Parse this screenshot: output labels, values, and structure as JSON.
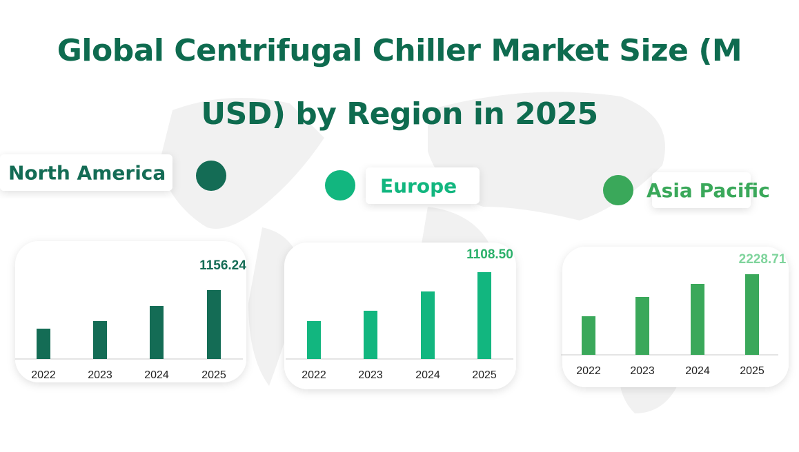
{
  "title": "Global Centrifugal Chiller Market Size (M USD) by Region in 2025",
  "chart_data": [
    {
      "type": "bar",
      "title": "North America",
      "categories": [
        "2022",
        "2023",
        "2024",
        "2025"
      ],
      "values": [
        509,
        636,
        890,
        1156.24
      ],
      "value_labels": [
        null,
        null,
        null,
        "1156.24"
      ],
      "color": "#146c55",
      "label_color": "#146c55"
    },
    {
      "type": "bar",
      "title": "Europe",
      "categories": [
        "2022",
        "2023",
        "2024",
        "2025"
      ],
      "values": [
        484,
        616,
        862,
        1108.5
      ],
      "value_labels": [
        null,
        null,
        null,
        "1108.50"
      ],
      "color": "#12b67f",
      "label_color": "#2bb06a"
    },
    {
      "type": "bar",
      "title": "Asia Pacific",
      "categories": [
        "2022",
        "2023",
        "2024",
        "2025"
      ],
      "values": [
        1067,
        1600,
        1962,
        2228.71
      ],
      "value_labels": [
        null,
        null,
        null,
        "2228.71"
      ],
      "color": "#3aa85a",
      "label_color": "#7fd49c"
    }
  ]
}
